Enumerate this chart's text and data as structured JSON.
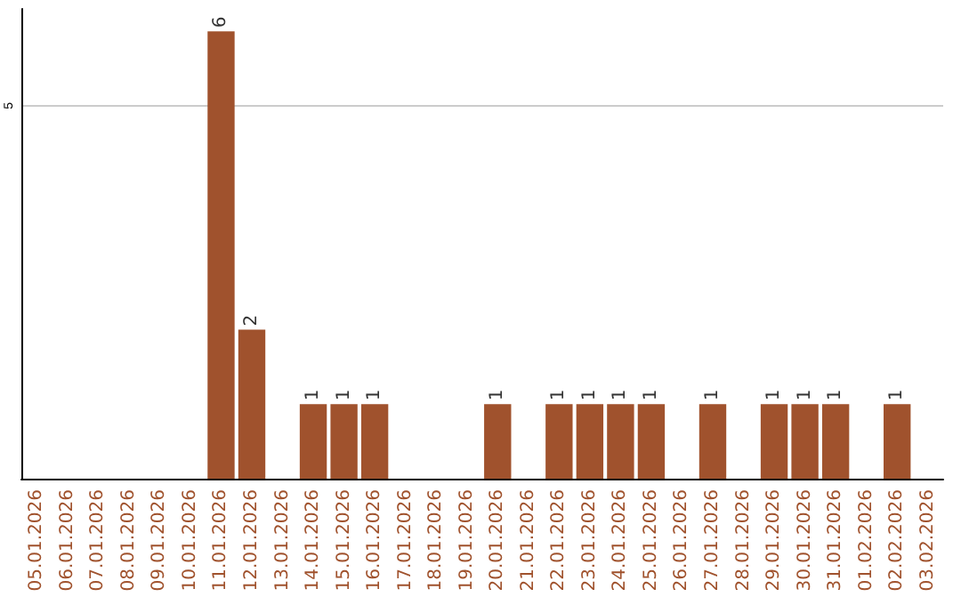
{
  "chart_data": {
    "type": "bar",
    "categories": [
      "05.01.2026",
      "06.01.2026",
      "07.01.2026",
      "08.01.2026",
      "09.01.2026",
      "10.01.2026",
      "11.01.2026",
      "12.01.2026",
      "13.01.2026",
      "14.01.2026",
      "15.01.2026",
      "16.01.2026",
      "17.01.2026",
      "18.01.2026",
      "19.01.2026",
      "20.01.2026",
      "21.01.2026",
      "22.01.2026",
      "23.01.2026",
      "24.01.2026",
      "25.01.2026",
      "26.01.2026",
      "27.01.2026",
      "28.01.2026",
      "29.01.2026",
      "30.01.2026",
      "31.01.2026",
      "01.02.2026",
      "02.02.2026",
      "03.02.2026"
    ],
    "values": [
      0,
      0,
      0,
      0,
      0,
      0,
      6,
      2,
      0,
      1,
      1,
      1,
      0,
      0,
      0,
      1,
      0,
      1,
      1,
      1,
      1,
      0,
      1,
      0,
      1,
      1,
      1,
      0,
      1,
      0
    ],
    "value_labels": [
      null,
      null,
      null,
      null,
      null,
      null,
      "6",
      "2",
      null,
      "1",
      "1",
      "1",
      null,
      null,
      null,
      "1",
      null,
      "1",
      "1",
      "1",
      "1",
      null,
      "1",
      null,
      "1",
      "1",
      "1",
      null,
      "1",
      null
    ],
    "color": "#a0522d",
    "ylim": [
      0,
      6.3
    ],
    "yticks": [
      5
    ],
    "grid": "y"
  }
}
